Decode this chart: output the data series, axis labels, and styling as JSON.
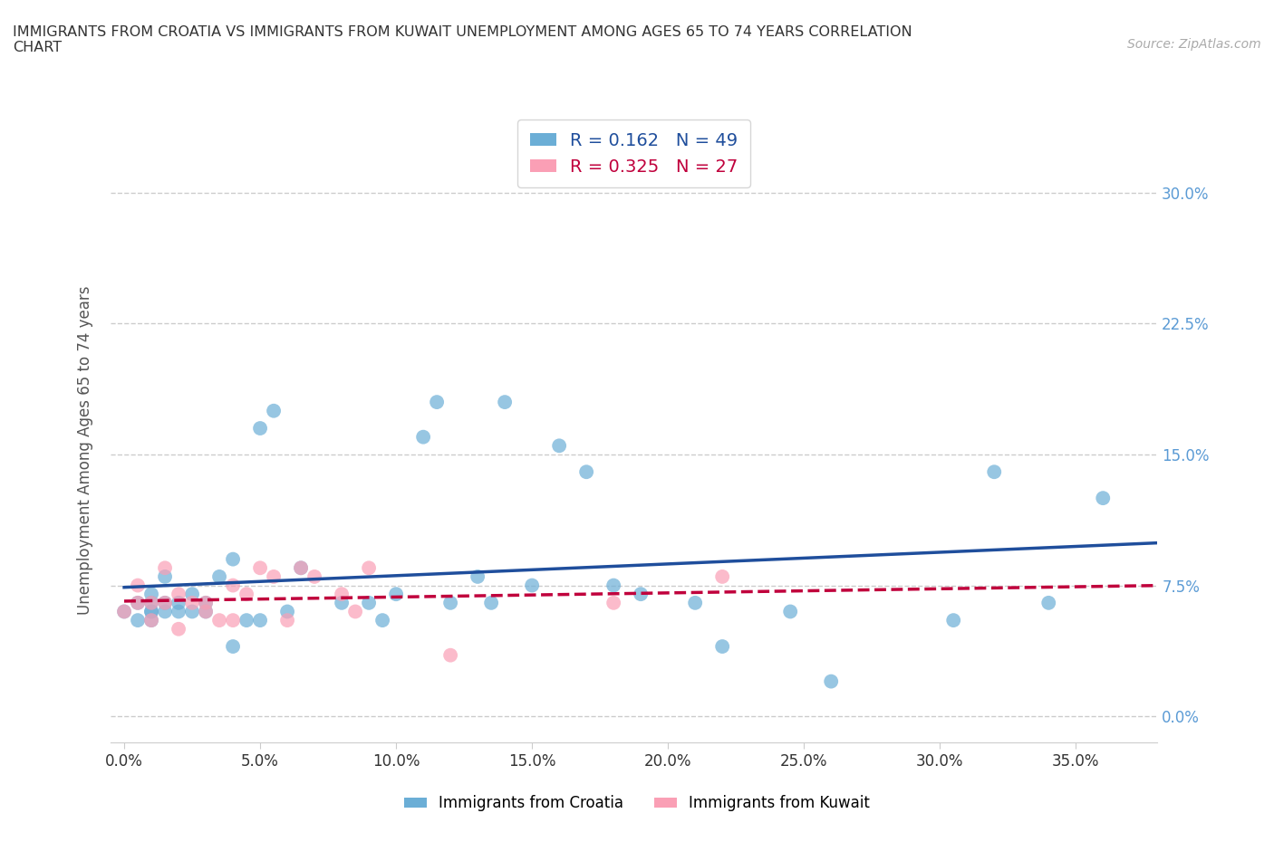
{
  "title": "IMMIGRANTS FROM CROATIA VS IMMIGRANTS FROM KUWAIT UNEMPLOYMENT AMONG AGES 65 TO 74 YEARS CORRELATION\nCHART",
  "source": "Source: ZipAtlas.com",
  "ylabel": "Unemployment Among Ages 65 to 74 years",
  "legend_label_1": "Immigrants from Croatia",
  "legend_label_2": "Immigrants from Kuwait",
  "R1": 0.162,
  "N1": 49,
  "R2": 0.325,
  "N2": 27,
  "color1": "#6baed6",
  "color2": "#fa9fb5",
  "trendline1_color": "#1f4e9c",
  "trendline2_color": "#c0003c",
  "xlim": [
    -0.005,
    0.38
  ],
  "ylim": [
    -0.015,
    0.32
  ],
  "xticks": [
    0.0,
    0.05,
    0.1,
    0.15,
    0.2,
    0.25,
    0.3,
    0.35
  ],
  "yticks": [
    0.0,
    0.075,
    0.15,
    0.225,
    0.3
  ],
  "croatia_x": [
    0.0,
    0.005,
    0.005,
    0.01,
    0.01,
    0.01,
    0.01,
    0.01,
    0.015,
    0.015,
    0.015,
    0.02,
    0.02,
    0.025,
    0.025,
    0.03,
    0.03,
    0.035,
    0.04,
    0.04,
    0.045,
    0.05,
    0.05,
    0.055,
    0.06,
    0.065,
    0.08,
    0.09,
    0.095,
    0.1,
    0.11,
    0.115,
    0.12,
    0.13,
    0.135,
    0.14,
    0.15,
    0.16,
    0.17,
    0.18,
    0.19,
    0.21,
    0.22,
    0.245,
    0.26,
    0.305,
    0.32,
    0.34,
    0.36
  ],
  "croatia_y": [
    0.06,
    0.055,
    0.065,
    0.06,
    0.065,
    0.055,
    0.07,
    0.06,
    0.065,
    0.08,
    0.06,
    0.065,
    0.06,
    0.07,
    0.06,
    0.065,
    0.06,
    0.08,
    0.09,
    0.04,
    0.055,
    0.055,
    0.165,
    0.175,
    0.06,
    0.085,
    0.065,
    0.065,
    0.055,
    0.07,
    0.16,
    0.18,
    0.065,
    0.08,
    0.065,
    0.18,
    0.075,
    0.155,
    0.14,
    0.075,
    0.07,
    0.065,
    0.04,
    0.06,
    0.02,
    0.055,
    0.14,
    0.065,
    0.125
  ],
  "kuwait_x": [
    0.0,
    0.005,
    0.005,
    0.01,
    0.01,
    0.015,
    0.015,
    0.02,
    0.02,
    0.025,
    0.03,
    0.03,
    0.035,
    0.04,
    0.04,
    0.045,
    0.05,
    0.055,
    0.06,
    0.065,
    0.07,
    0.08,
    0.085,
    0.09,
    0.12,
    0.18,
    0.22
  ],
  "kuwait_y": [
    0.06,
    0.065,
    0.075,
    0.065,
    0.055,
    0.085,
    0.065,
    0.07,
    0.05,
    0.065,
    0.06,
    0.065,
    0.055,
    0.055,
    0.075,
    0.07,
    0.085,
    0.08,
    0.055,
    0.085,
    0.08,
    0.07,
    0.06,
    0.085,
    0.035,
    0.065,
    0.08
  ],
  "background_color": "#ffffff",
  "grid_color": "#cccccc"
}
